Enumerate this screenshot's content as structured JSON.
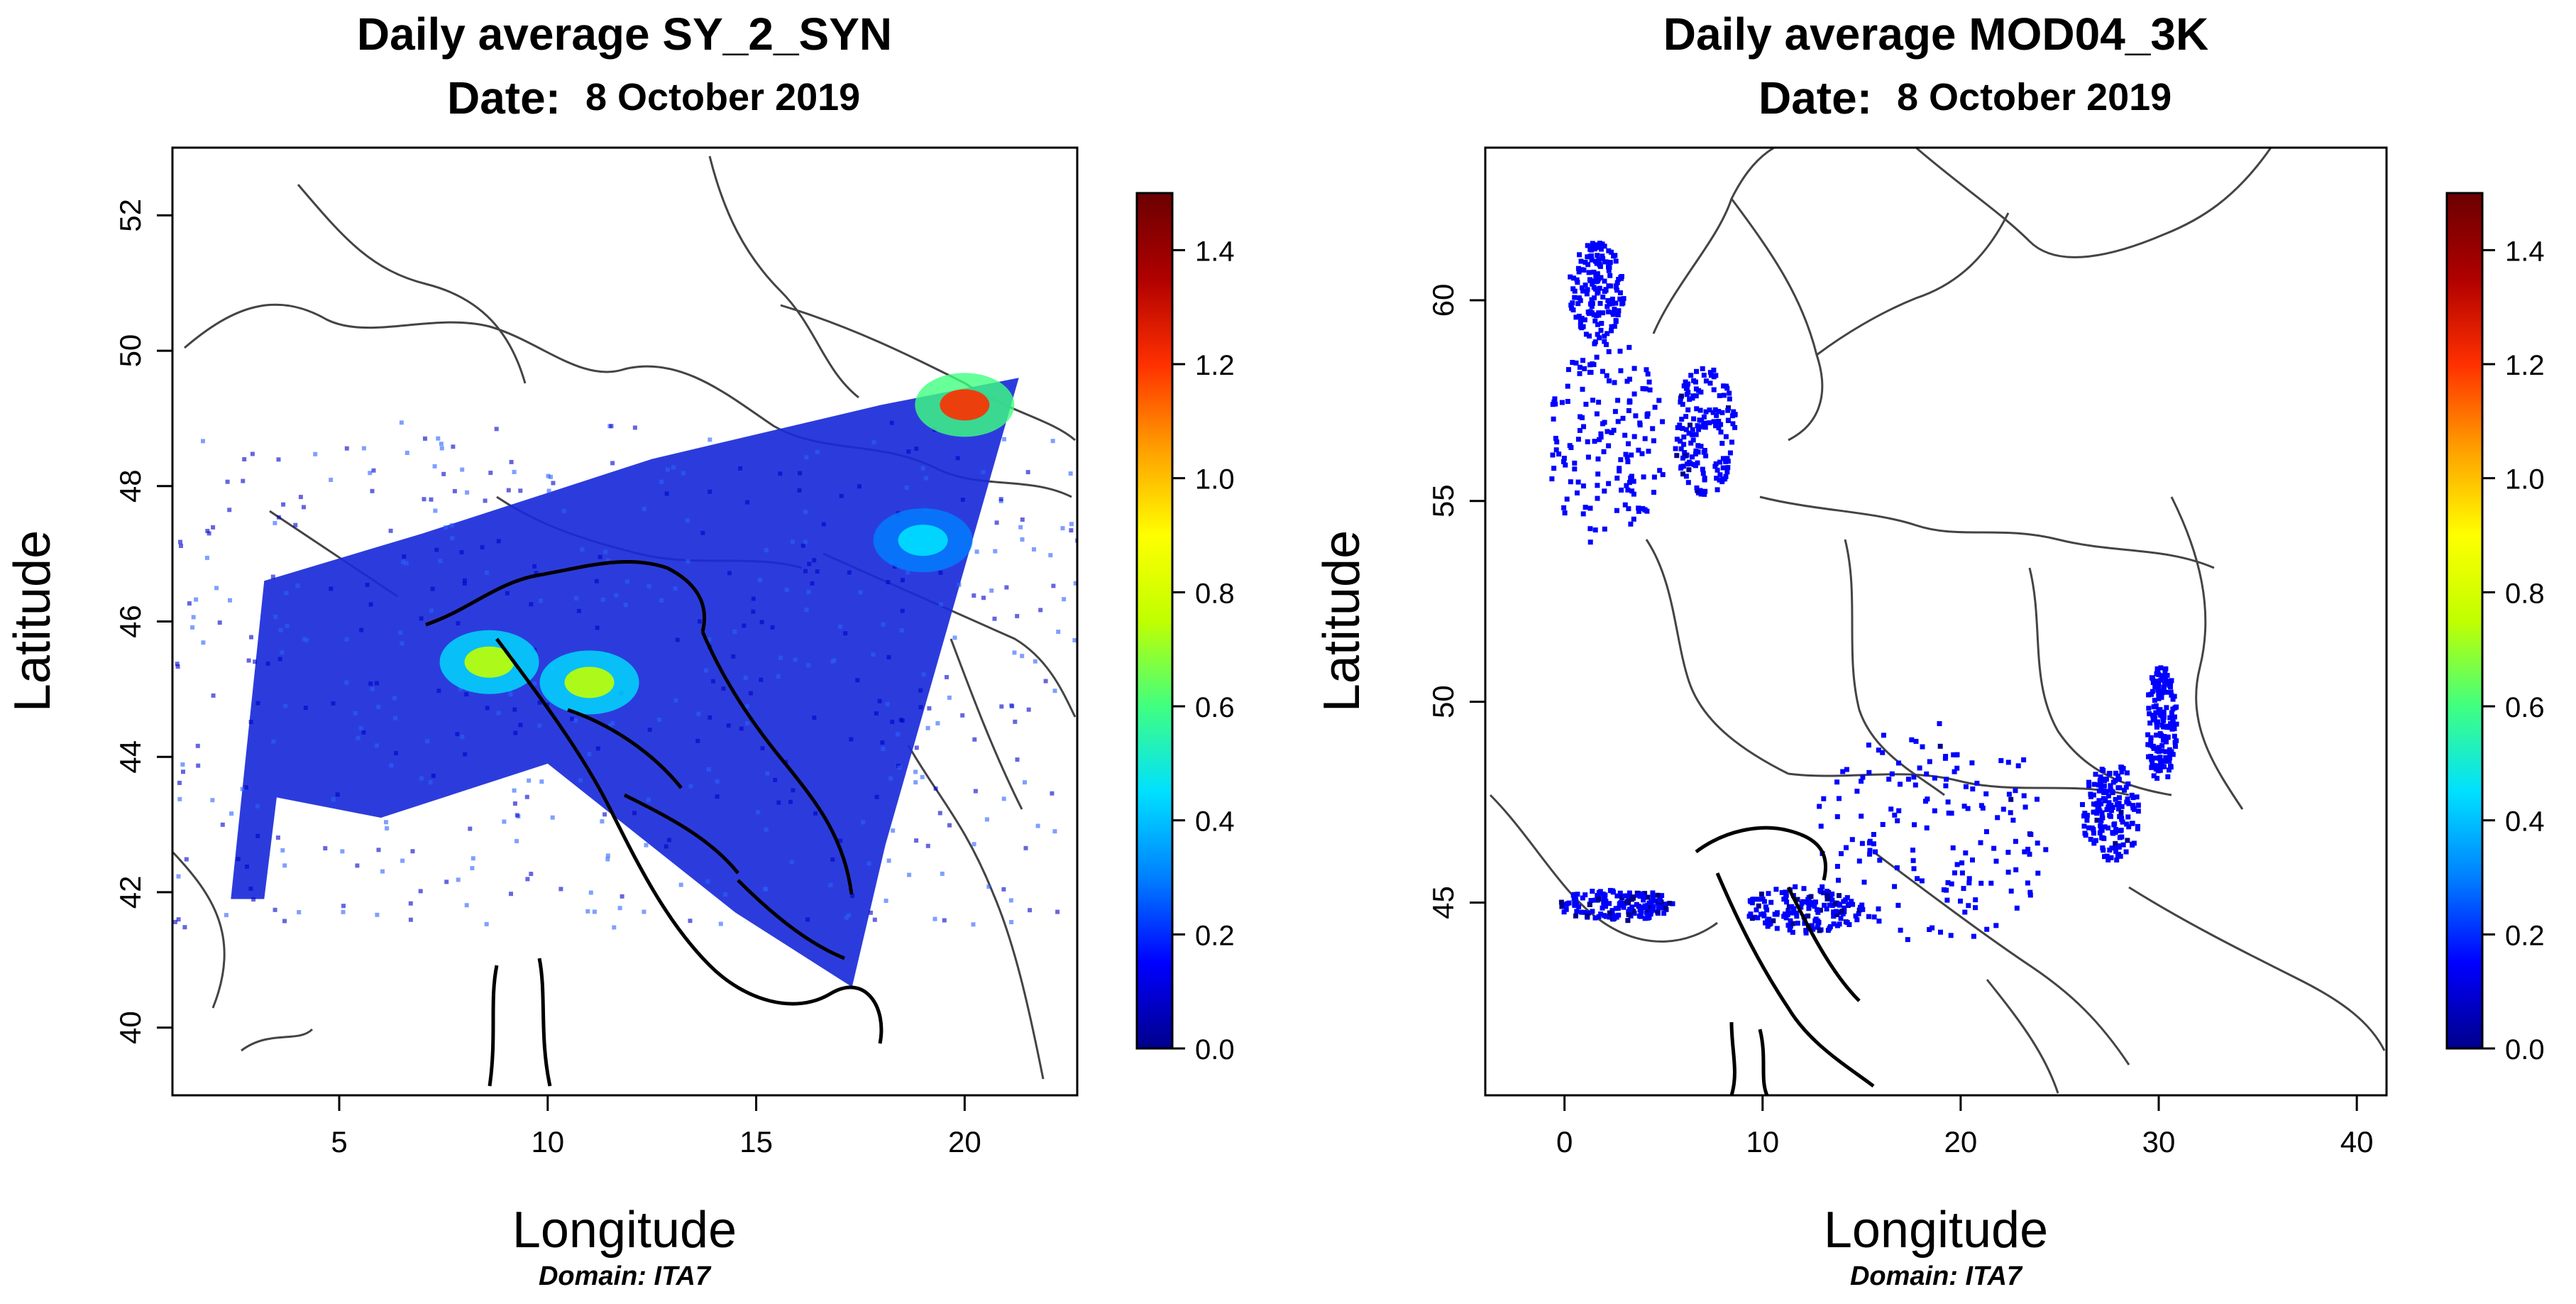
{
  "chart_data": [
    {
      "type": "heatmap",
      "title": "Daily average SY_2_SYN",
      "date_label": "Date:",
      "date_value": "8 October 2019",
      "xlabel": "Longitude",
      "ylabel": "Latitude",
      "domain_label": "Domain: ITA7",
      "xlim": [
        1,
        22.7
      ],
      "ylim": [
        39,
        53
      ],
      "xticks": [
        5,
        10,
        15,
        20
      ],
      "xtick_labels": [
        "5",
        "10",
        "15",
        "20"
      ],
      "yticks": [
        40,
        42,
        44,
        46,
        48,
        50,
        52
      ],
      "ytick_labels": [
        "40",
        "42",
        "44",
        "46",
        "48",
        "50",
        "52"
      ],
      "colorbar": {
        "min": 0.0,
        "max": 1.5,
        "ticks": [
          0.0,
          0.2,
          0.4,
          0.6,
          0.8,
          1.0,
          1.2,
          1.4
        ],
        "tick_labels": [
          "0.0",
          "0.2",
          "0.4",
          "0.6",
          "0.8",
          "1.0",
          "1.2",
          "1.4"
        ],
        "colors": [
          "#00008b",
          "#0000ff",
          "#0080ff",
          "#00e0ff",
          "#40ff80",
          "#c0ff00",
          "#ffff00",
          "#ffa000",
          "#ff3000",
          "#b00000",
          "#6b0000"
        ]
      },
      "coverage_polygon": [
        [
          2.4,
          41.9
        ],
        [
          3.2,
          46.6
        ],
        [
          7.0,
          47.3
        ],
        [
          12.5,
          48.4
        ],
        [
          18.0,
          49.2
        ],
        [
          21.3,
          49.6
        ],
        [
          18.1,
          42.7
        ],
        [
          17.3,
          40.6
        ],
        [
          14.5,
          41.7
        ],
        [
          10.0,
          43.9
        ],
        [
          6.0,
          43.1
        ],
        [
          3.5,
          43.4
        ],
        [
          3.2,
          41.9
        ]
      ],
      "hotspots": [
        {
          "lon": 8.6,
          "lat": 45.4,
          "value": 0.8
        },
        {
          "lon": 11.0,
          "lat": 45.1,
          "value": 0.7
        },
        {
          "lon": 20.0,
          "lat": 49.2,
          "value": 1.2
        },
        {
          "lon": 19.0,
          "lat": 47.2,
          "value": 0.5
        }
      ]
    },
    {
      "type": "heatmap",
      "title": "Daily average MOD04_3K",
      "date_label": "Date:",
      "date_value": "8 October 2019",
      "xlabel": "Longitude",
      "ylabel": "Latitude",
      "domain_label": "Domain: ITA7",
      "xlim": [
        -4,
        41.5
      ],
      "ylim": [
        40.2,
        63.8
      ],
      "xticks": [
        0,
        10,
        20,
        30,
        40
      ],
      "xtick_labels": [
        "0",
        "10",
        "20",
        "30",
        "40"
      ],
      "yticks": [
        45,
        50,
        55,
        60
      ],
      "ytick_labels": [
        "45",
        "50",
        "55",
        "60"
      ],
      "colorbar": {
        "min": 0.0,
        "max": 1.5,
        "ticks": [
          0.0,
          0.2,
          0.4,
          0.6,
          0.8,
          1.0,
          1.2,
          1.4
        ],
        "tick_labels": [
          "0.0",
          "0.2",
          "0.4",
          "0.6",
          "0.8",
          "1.0",
          "1.2",
          "1.4"
        ],
        "colors": [
          "#00008b",
          "#0000ff",
          "#0080ff",
          "#00e0ff",
          "#40ff80",
          "#c0ff00",
          "#ffff00",
          "#ffa000",
          "#ff3000",
          "#b00000",
          "#6b0000"
        ]
      },
      "patches": [
        {
          "lon": 2.0,
          "lat": 56.5,
          "rlon": 3.0,
          "rlat": 2.6,
          "value": 0.15
        },
        {
          "lon": 1.5,
          "lat": 60.3,
          "rlon": 1.4,
          "rlat": 1.2,
          "value": 0.15
        },
        {
          "lon": 7.0,
          "lat": 56.8,
          "rlon": 1.6,
          "rlat": 1.6,
          "value": 0.12
        },
        {
          "lon": 18.5,
          "lat": 46.8,
          "rlon": 6.0,
          "rlat": 2.8,
          "value": 0.12
        },
        {
          "lon": 27.5,
          "lat": 47.3,
          "rlon": 1.5,
          "rlat": 1.2,
          "value": 0.12
        },
        {
          "lon": 30.0,
          "lat": 49.5,
          "rlon": 0.8,
          "rlat": 1.5,
          "value": 0.15
        },
        {
          "lon": 12.0,
          "lat": 44.9,
          "rlon": 3.0,
          "rlat": 0.6,
          "value": 0.1
        },
        {
          "lon": 2.5,
          "lat": 45.0,
          "rlon": 3.0,
          "rlat": 0.4,
          "value": 0.1
        }
      ]
    }
  ]
}
